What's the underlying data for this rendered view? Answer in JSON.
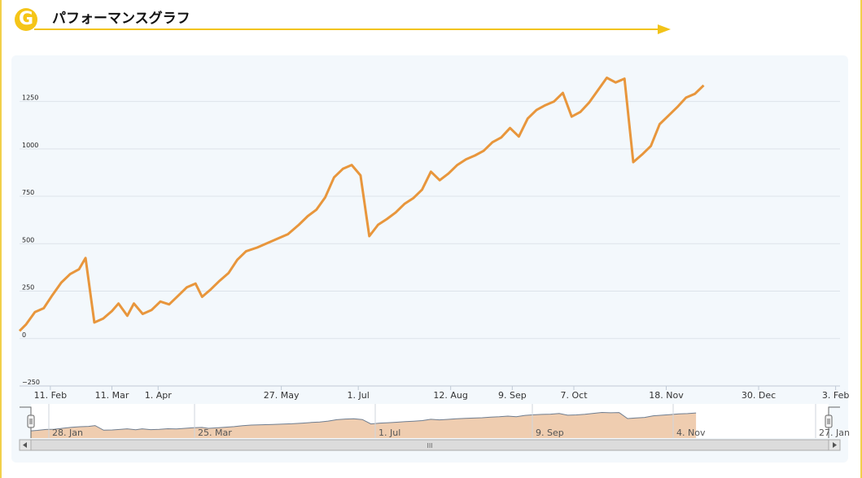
{
  "header": {
    "badge_letter": "G",
    "title": "パフォーマンスグラフ"
  },
  "colors": {
    "line": "#e8963c",
    "navigator_fill": "#efcdb0",
    "navigator_line": "#6f7d8f",
    "accent": "#f2c318",
    "panel_bg": "#f3f8fc"
  },
  "chart_data": {
    "type": "line",
    "title": "",
    "xlabel": "",
    "ylabel": "",
    "ylim": [
      -250,
      1450
    ],
    "yticks": [
      -250,
      0,
      250,
      500,
      750,
      1000,
      1250
    ],
    "ytick_labels": [
      "−250",
      "0",
      "250",
      "500",
      "750",
      "1000",
      "1250"
    ],
    "xlim_days": [
      0,
      373
    ],
    "x_start_label": "28 Jan",
    "xticks": [
      {
        "label": "11. Feb",
        "day": 14
      },
      {
        "label": "11. Mar",
        "day": 42
      },
      {
        "label": "1. Apr",
        "day": 63
      },
      {
        "label": "27. May",
        "day": 119
      },
      {
        "label": "1. Jul",
        "day": 154
      },
      {
        "label": "12. Aug",
        "day": 196
      },
      {
        "label": "9. Sep",
        "day": 224
      },
      {
        "label": "7. Oct",
        "day": 252
      },
      {
        "label": "18. Nov",
        "day": 294
      },
      {
        "label": "30. Dec",
        "day": 336
      },
      {
        "label": "3. Feb",
        "day": 371
      }
    ],
    "series": [
      {
        "name": "",
        "points": [
          [
            0,
            40
          ],
          [
            3,
            75
          ],
          [
            7,
            140
          ],
          [
            11,
            160
          ],
          [
            15,
            230
          ],
          [
            19,
            295
          ],
          [
            23,
            340
          ],
          [
            27,
            365
          ],
          [
            30,
            425
          ],
          [
            34,
            85
          ],
          [
            38,
            105
          ],
          [
            42,
            145
          ],
          [
            45,
            185
          ],
          [
            49,
            120
          ],
          [
            52,
            185
          ],
          [
            56,
            130
          ],
          [
            60,
            150
          ],
          [
            64,
            195
          ],
          [
            68,
            180
          ],
          [
            72,
            225
          ],
          [
            76,
            270
          ],
          [
            80,
            290
          ],
          [
            83,
            220
          ],
          [
            87,
            260
          ],
          [
            91,
            305
          ],
          [
            95,
            345
          ],
          [
            99,
            415
          ],
          [
            103,
            460
          ],
          [
            108,
            480
          ],
          [
            113,
            505
          ],
          [
            118,
            530
          ],
          [
            122,
            550
          ],
          [
            127,
            600
          ],
          [
            131,
            645
          ],
          [
            135,
            680
          ],
          [
            139,
            745
          ],
          [
            143,
            850
          ],
          [
            147,
            895
          ],
          [
            151,
            915
          ],
          [
            155,
            860
          ],
          [
            159,
            540
          ],
          [
            163,
            600
          ],
          [
            167,
            630
          ],
          [
            171,
            665
          ],
          [
            175,
            710
          ],
          [
            179,
            740
          ],
          [
            183,
            785
          ],
          [
            187,
            880
          ],
          [
            191,
            835
          ],
          [
            195,
            870
          ],
          [
            199,
            915
          ],
          [
            203,
            945
          ],
          [
            207,
            965
          ],
          [
            211,
            990
          ],
          [
            215,
            1035
          ],
          [
            219,
            1060
          ],
          [
            223,
            1110
          ],
          [
            227,
            1065
          ],
          [
            231,
            1160
          ],
          [
            235,
            1205
          ],
          [
            239,
            1230
          ],
          [
            243,
            1250
          ],
          [
            247,
            1295
          ],
          [
            251,
            1170
          ],
          [
            255,
            1195
          ],
          [
            259,
            1245
          ],
          [
            263,
            1310
          ],
          [
            267,
            1375
          ],
          [
            271,
            1350
          ],
          [
            275,
            1370
          ],
          [
            279,
            930
          ],
          [
            283,
            970
          ],
          [
            287,
            1015
          ],
          [
            291,
            1130
          ],
          [
            295,
            1175
          ],
          [
            299,
            1220
          ],
          [
            303,
            1270
          ],
          [
            307,
            1290
          ],
          [
            311,
            1335
          ]
        ]
      }
    ],
    "navigator": {
      "labels": [
        "28. Jan",
        "25. Mar",
        "1. Jul",
        "9. Sep",
        "4. Nov",
        "27. Jan"
      ],
      "scrollbar_grip": "III"
    },
    "grid": true,
    "legend": "none"
  }
}
